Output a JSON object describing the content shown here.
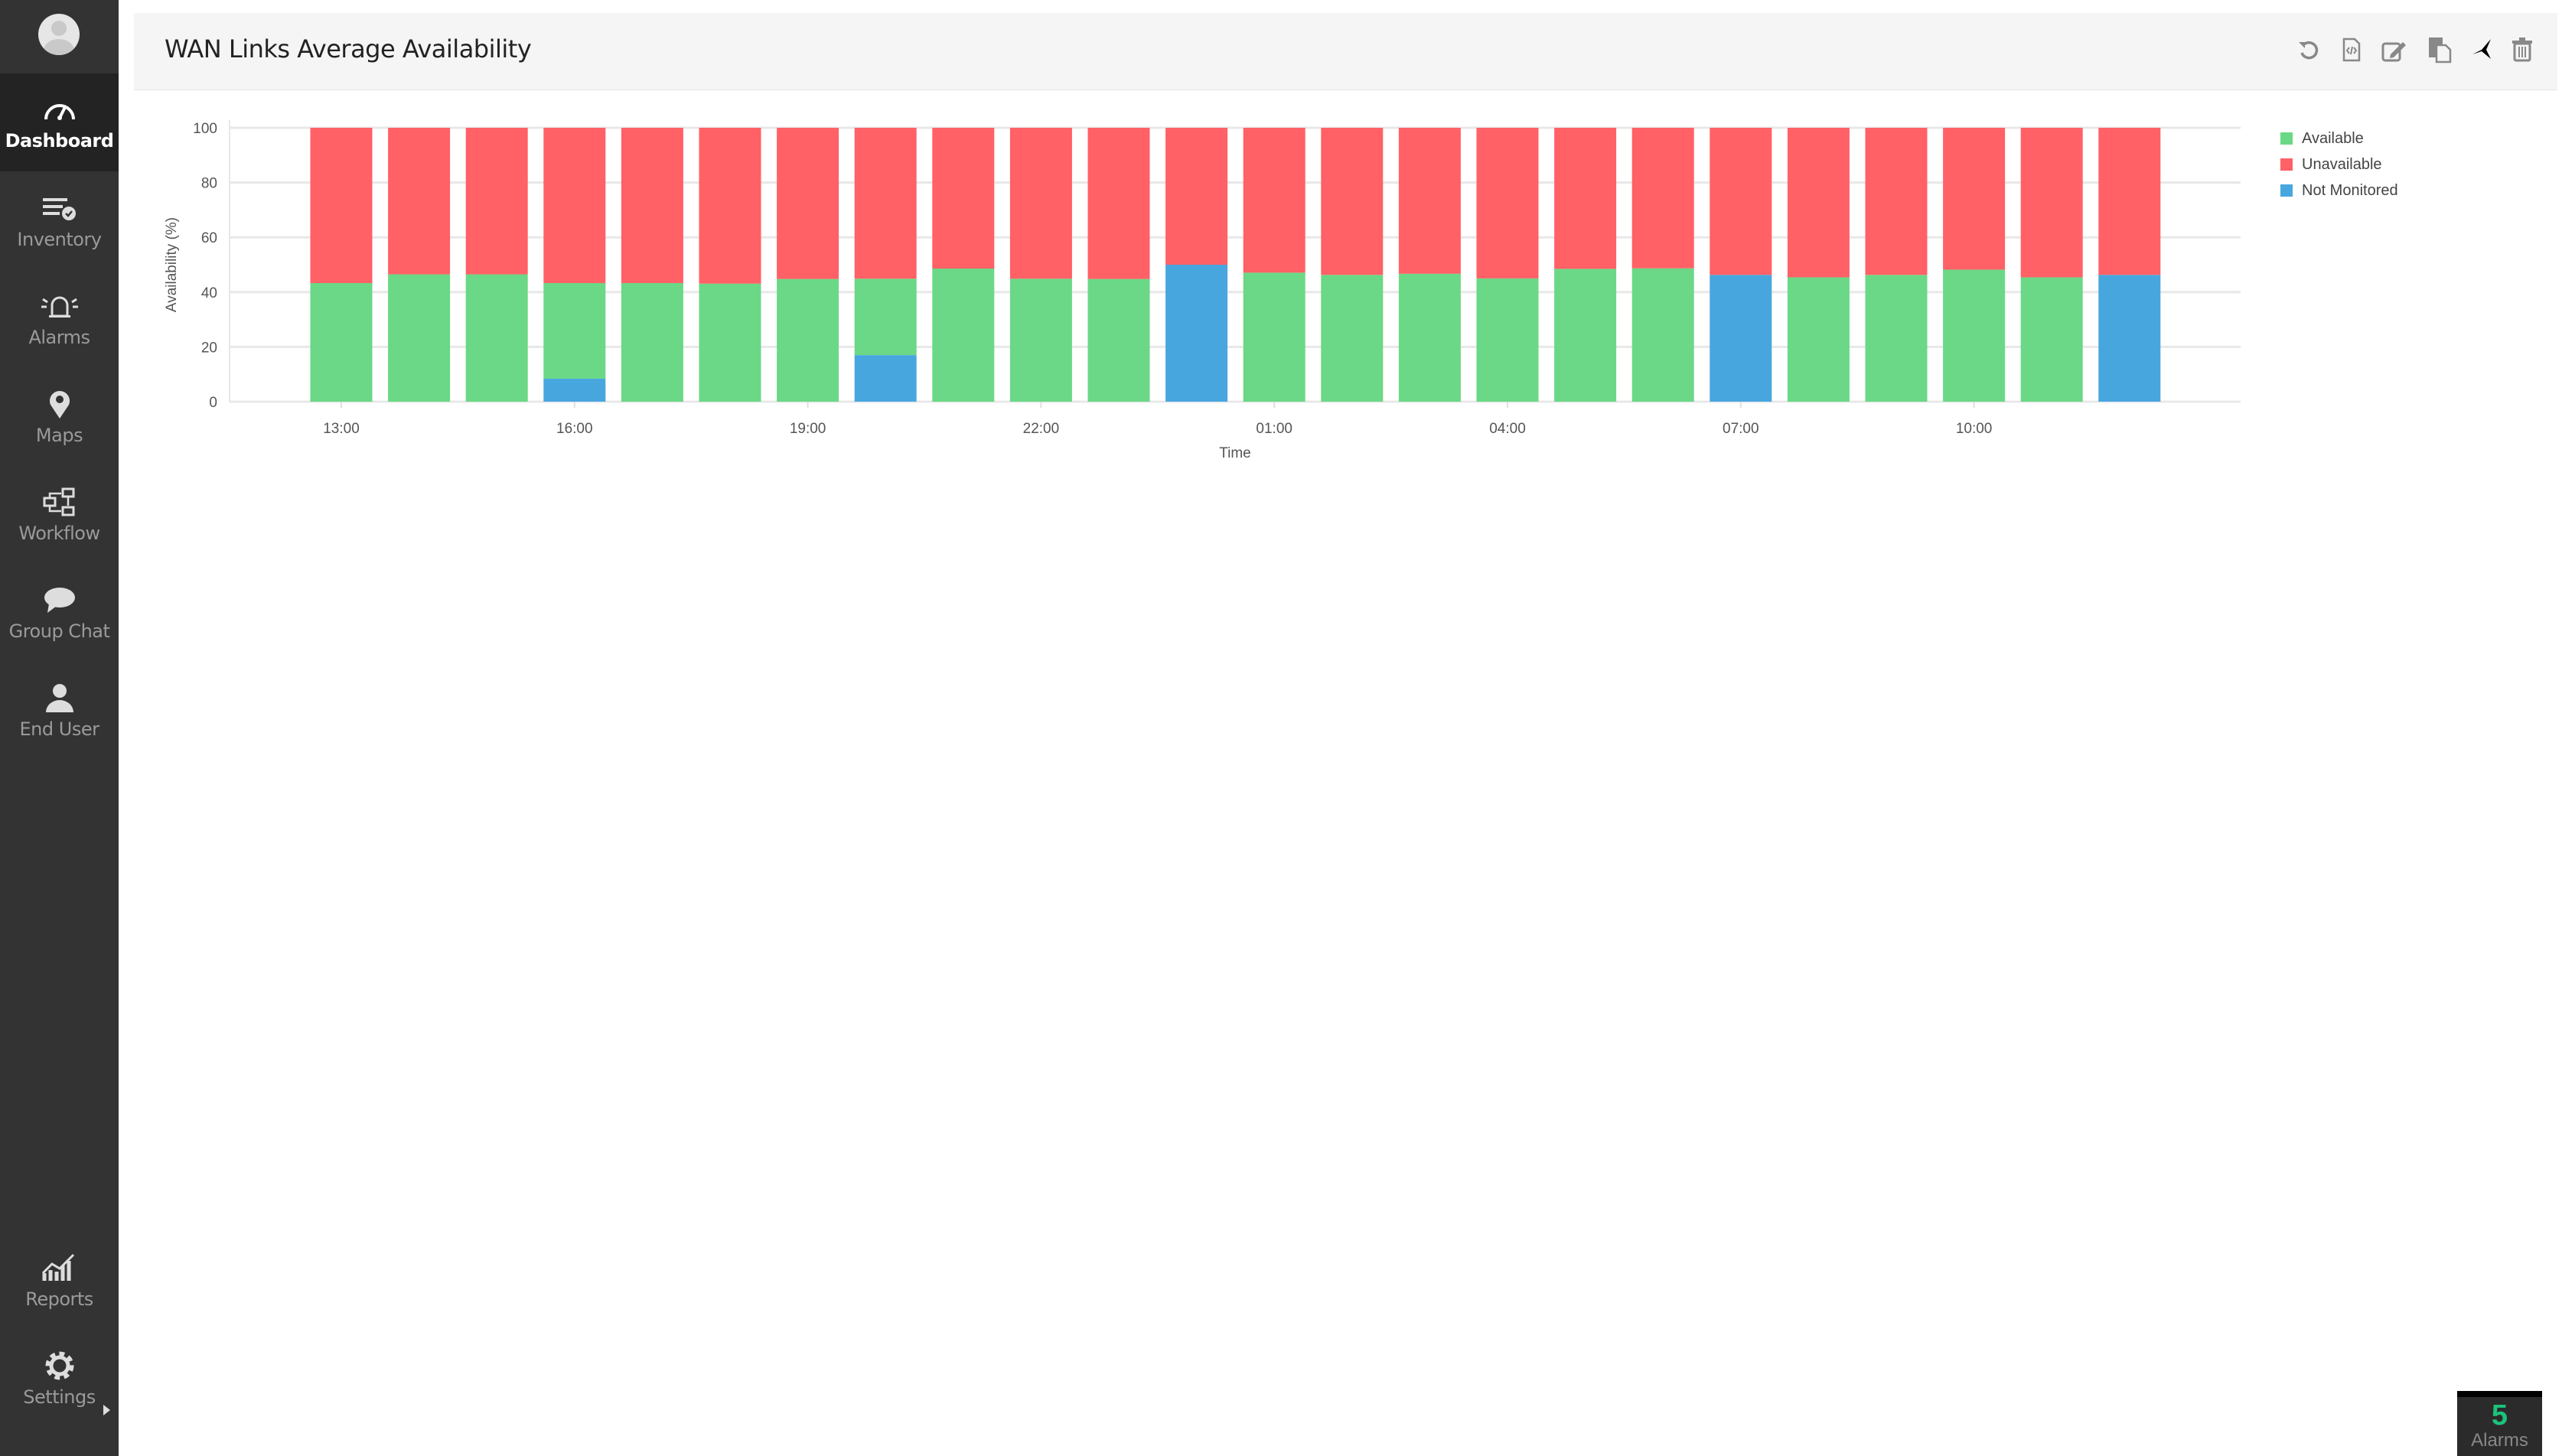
{
  "sidebar": {
    "items": [
      {
        "label": "Dashboard",
        "icon": "speedometer-icon",
        "active": true
      },
      {
        "label": "Inventory",
        "icon": "list-check-icon"
      },
      {
        "label": "Alarms",
        "icon": "bell-icon"
      },
      {
        "label": "Maps",
        "icon": "map-pin-icon"
      },
      {
        "label": "Workflow",
        "icon": "workflow-icon"
      },
      {
        "label": "Group Chat",
        "icon": "chat-icon"
      },
      {
        "label": "End User",
        "icon": "user-icon"
      },
      {
        "label": "Reports",
        "icon": "chart-icon"
      },
      {
        "label": "Settings",
        "icon": "gear-icon"
      }
    ]
  },
  "widget": {
    "title": "WAN Links Average Availability",
    "tools": [
      "refresh-icon",
      "embed-code-icon",
      "edit-icon",
      "copy-icon",
      "pin-icon",
      "trash-icon"
    ]
  },
  "alarm_badge": {
    "count": "5",
    "label": "Alarms",
    "color": "#1cc27a"
  },
  "chart_data": {
    "type": "bar",
    "stacked": true,
    "xlabel": "Time",
    "ylabel": "Availability (%)",
    "ylim": [
      0,
      100
    ],
    "yticks": [
      0,
      20,
      40,
      60,
      80,
      100
    ],
    "grid": true,
    "legend": "right",
    "categories": [
      "13:00",
      "14:00",
      "15:00",
      "16:00",
      "17:00",
      "18:00",
      "19:00",
      "20:00",
      "21:00",
      "22:00",
      "23:00",
      "00:00",
      "01:00",
      "02:00",
      "03:00",
      "04:00",
      "05:00",
      "06:00",
      "07:00",
      "08:00",
      "09:00",
      "10:00",
      "11:00",
      "12:00"
    ],
    "xtick_labels": [
      "13:00",
      "16:00",
      "19:00",
      "22:00",
      "01:00",
      "04:00",
      "07:00",
      "10:00"
    ],
    "series": [
      {
        "name": "Not Monitored",
        "color": "#48a6df",
        "values": [
          0,
          0,
          0,
          8.4,
          0,
          0,
          0,
          17.0,
          0,
          0,
          0,
          50.0,
          0,
          0,
          0,
          0,
          0,
          0,
          46.3,
          0,
          0,
          0,
          0,
          46.3
        ]
      },
      {
        "name": "Available",
        "color": "#6ad886",
        "values": [
          43.3,
          46.5,
          46.5,
          34.9,
          43.3,
          43.1,
          44.8,
          27.9,
          48.6,
          44.9,
          44.8,
          0,
          47.1,
          46.3,
          46.7,
          45.0,
          48.5,
          48.7,
          0,
          45.4,
          46.3,
          48.2,
          45.4,
          0
        ]
      },
      {
        "name": "Unavailable",
        "color": "#ff6166",
        "values": [
          56.7,
          53.5,
          53.5,
          56.7,
          56.7,
          56.9,
          55.2,
          55.1,
          51.4,
          55.1,
          55.2,
          50.0,
          52.9,
          53.7,
          53.3,
          55.0,
          51.5,
          51.3,
          53.7,
          54.6,
          53.7,
          51.8,
          54.6,
          53.7
        ]
      }
    ],
    "legend_order": [
      "Available",
      "Unavailable",
      "Not Monitored"
    ]
  }
}
